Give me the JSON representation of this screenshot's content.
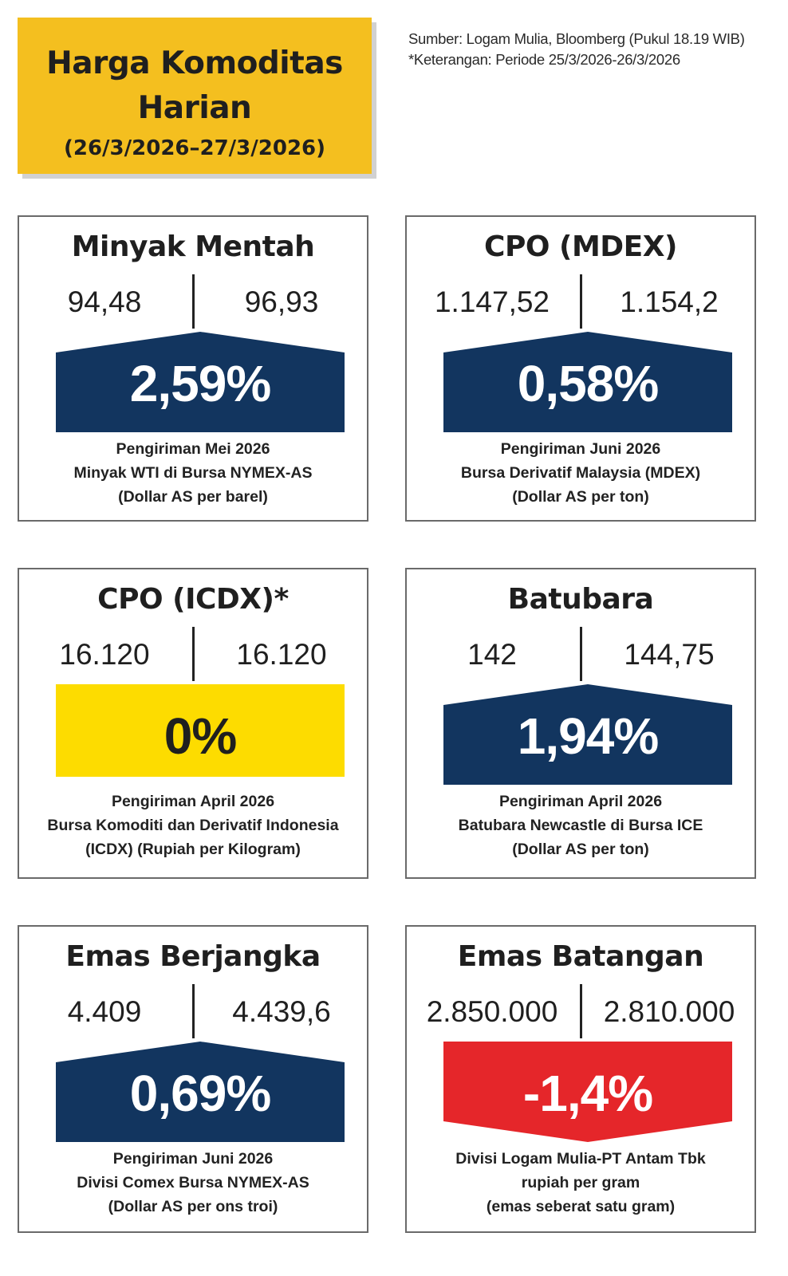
{
  "header": {
    "title_line1": "Harga Komoditas",
    "title_line2": "Harian",
    "period": "(26/3/2026–27/3/2026)",
    "source": "Sumber: Logam Mulia, Bloomberg (Pukul 18.19 WIB)",
    "note": "*Keterangan: Periode 25/3/2026-26/3/2026"
  },
  "colors": {
    "title_bg": "#f4bf1f",
    "up": "#12355f",
    "flat": "#fddc00",
    "down": "#e5262a"
  },
  "cards": [
    {
      "title": "Minyak Mentah",
      "prev": "94,48",
      "curr": "96,93",
      "change": "2,59%",
      "trend": "up",
      "desc1": "Pengiriman Mei 2026",
      "desc2": "Minyak WTI di Bursa NYMEX-AS",
      "desc3": "(Dollar AS per barel)"
    },
    {
      "title": "CPO (MDEX)",
      "prev": "1.147,52",
      "curr": "1.154,2",
      "change": "0,58%",
      "trend": "up",
      "desc1": "Pengiriman Juni 2026",
      "desc2": "Bursa Derivatif Malaysia (MDEX)",
      "desc3": "(Dollar AS per ton)"
    },
    {
      "title": "CPO (ICDX)*",
      "prev": "16.120",
      "curr": "16.120",
      "change": "0%",
      "trend": "flat",
      "desc1": "Pengiriman April 2026",
      "desc2": "Bursa Komoditi dan Derivatif Indonesia",
      "desc3": "(ICDX) (Rupiah per Kilogram)"
    },
    {
      "title": "Batubara",
      "prev": "142",
      "curr": "144,75",
      "change": "1,94%",
      "trend": "up",
      "desc1": "Pengiriman April 2026",
      "desc2": "Batubara Newcastle di Bursa ICE",
      "desc3": "(Dollar AS per ton)"
    },
    {
      "title": "Emas Berjangka",
      "prev": "4.409",
      "curr": "4.439,6",
      "change": "0,69%",
      "trend": "up",
      "desc1": "Pengiriman Juni 2026",
      "desc2": "Divisi Comex Bursa NYMEX-AS",
      "desc3": "(Dollar AS per ons troi)"
    },
    {
      "title": "Emas Batangan",
      "prev": "2.850.000",
      "curr": "2.810.000",
      "change": "-1,4%",
      "trend": "down",
      "desc1": "Divisi Logam Mulia-PT Antam Tbk",
      "desc2": "rupiah per gram",
      "desc3": "(emas seberat satu gram)"
    }
  ]
}
